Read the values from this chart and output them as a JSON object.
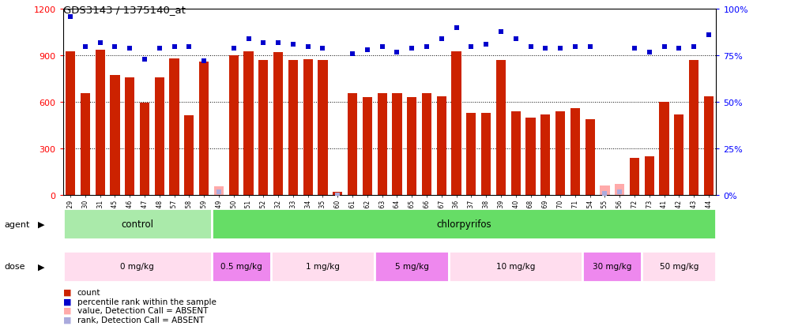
{
  "title": "GDS3143 / 1375140_at",
  "samples": [
    "GSM246129",
    "GSM246130",
    "GSM246131",
    "GSM246145",
    "GSM246146",
    "GSM246147",
    "GSM246148",
    "GSM246157",
    "GSM246158",
    "GSM246159",
    "GSM246149",
    "GSM246150",
    "GSM246151",
    "GSM246152",
    "GSM246132",
    "GSM246133",
    "GSM246134",
    "GSM246135",
    "GSM246160",
    "GSM246161",
    "GSM246162",
    "GSM246163",
    "GSM246164",
    "GSM246165",
    "GSM246166",
    "GSM246167",
    "GSM246136",
    "GSM246137",
    "GSM246138",
    "GSM246139",
    "GSM246140",
    "GSM246168",
    "GSM246169",
    "GSM246170",
    "GSM246171",
    "GSM246154",
    "GSM246155",
    "GSM246156",
    "GSM246172",
    "GSM246173",
    "GSM246141",
    "GSM246142",
    "GSM246143",
    "GSM246144"
  ],
  "bar_values": [
    930,
    660,
    940,
    775,
    760,
    595,
    760,
    880,
    515,
    860,
    60,
    900,
    930,
    870,
    920,
    870,
    875,
    870,
    20,
    660,
    635,
    660,
    660,
    635,
    660,
    640,
    930,
    530,
    530,
    870,
    540,
    500,
    520,
    540,
    560,
    490,
    65,
    75,
    240,
    250,
    600,
    520,
    870,
    640
  ],
  "bar_absent": [
    false,
    false,
    false,
    false,
    false,
    false,
    false,
    false,
    false,
    false,
    true,
    false,
    false,
    false,
    false,
    false,
    false,
    false,
    false,
    false,
    false,
    false,
    false,
    false,
    false,
    false,
    false,
    false,
    false,
    false,
    false,
    false,
    false,
    false,
    false,
    false,
    true,
    true,
    false,
    false,
    false,
    false,
    false,
    false
  ],
  "rank_values_pct": [
    96,
    80,
    82,
    80,
    79,
    73,
    79,
    80,
    80,
    72,
    2,
    79,
    84,
    82,
    82,
    81,
    80,
    79,
    0,
    76,
    78,
    80,
    77,
    79,
    80,
    84,
    90,
    80,
    81,
    88,
    84,
    80,
    79,
    79,
    80,
    80,
    1,
    2,
    79,
    77,
    80,
    79,
    80,
    86
  ],
  "rank_absent": [
    false,
    false,
    false,
    false,
    false,
    false,
    false,
    false,
    false,
    false,
    true,
    false,
    false,
    false,
    false,
    false,
    false,
    false,
    true,
    false,
    false,
    false,
    false,
    false,
    false,
    false,
    false,
    false,
    false,
    false,
    false,
    false,
    false,
    false,
    false,
    false,
    true,
    true,
    false,
    false,
    false,
    false,
    false,
    false
  ],
  "agent_groups": [
    {
      "label": "control",
      "start": 0,
      "end": 9,
      "color": "#AAEAAA"
    },
    {
      "label": "chlorpyrifos",
      "start": 10,
      "end": 43,
      "color": "#66DD66"
    }
  ],
  "dose_groups": [
    {
      "label": "0 mg/kg",
      "start": 0,
      "end": 9,
      "color": "#FFDDEE"
    },
    {
      "label": "0.5 mg/kg",
      "start": 10,
      "end": 13,
      "color": "#EE88EE"
    },
    {
      "label": "1 mg/kg",
      "start": 14,
      "end": 20,
      "color": "#FFDDEE"
    },
    {
      "label": "5 mg/kg",
      "start": 21,
      "end": 25,
      "color": "#EE88EE"
    },
    {
      "label": "10 mg/kg",
      "start": 26,
      "end": 34,
      "color": "#FFDDEE"
    },
    {
      "label": "30 mg/kg",
      "start": 35,
      "end": 38,
      "color": "#EE88EE"
    },
    {
      "label": "50 mg/kg",
      "start": 39,
      "end": 43,
      "color": "#FFDDEE"
    }
  ],
  "bar_color": "#CC2200",
  "bar_absent_color": "#FFAAAA",
  "rank_color": "#0000CC",
  "rank_absent_color": "#AAAADD",
  "ylim_left": [
    0,
    1200
  ],
  "ylim_right": [
    0,
    100
  ],
  "yticks_left": [
    0,
    300,
    600,
    900,
    1200
  ],
  "yticks_right": [
    0,
    25,
    50,
    75,
    100
  ],
  "grid_vals": [
    300,
    600,
    900
  ]
}
